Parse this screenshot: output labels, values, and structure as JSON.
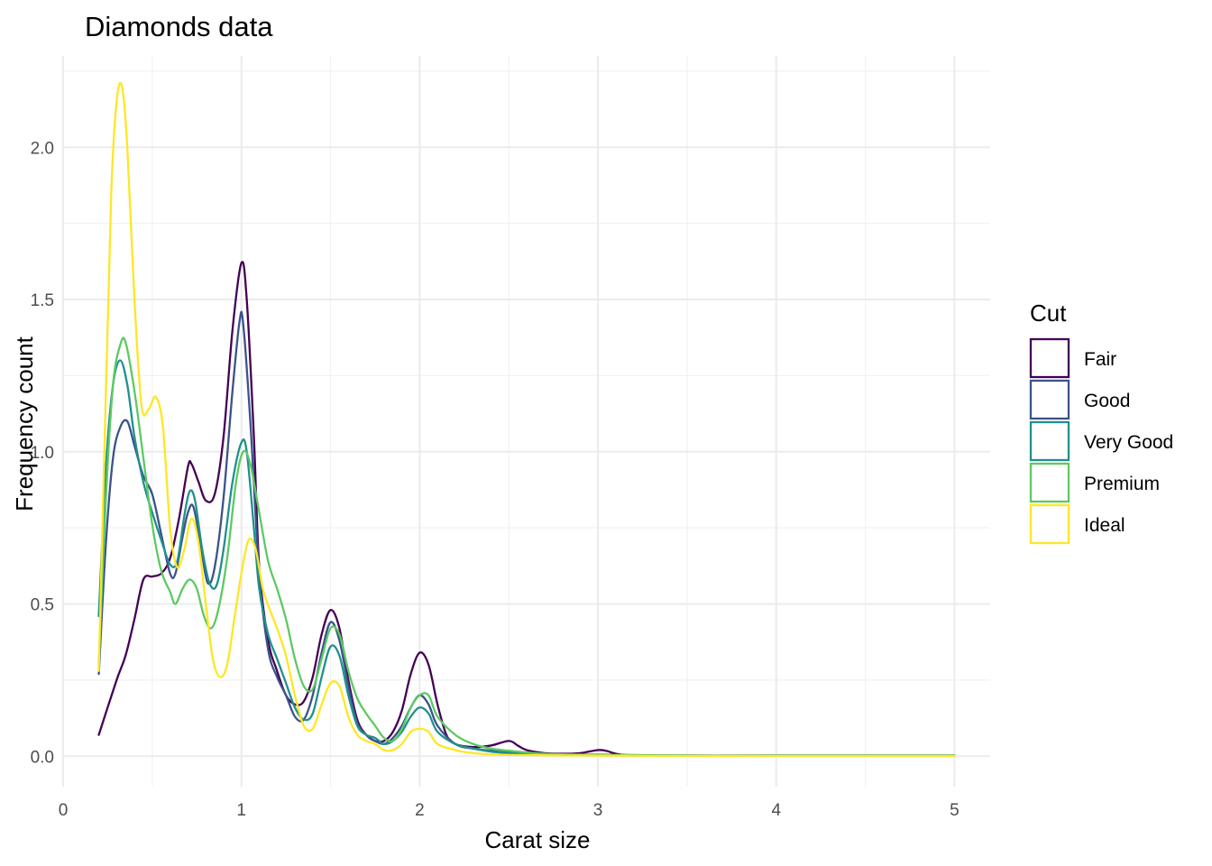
{
  "chart_data": {
    "type": "line",
    "title": "Diamonds data",
    "xlabel": "Carat size",
    "ylabel": "Frequency count",
    "xlim": [
      0,
      5.2
    ],
    "ylim": [
      -0.1,
      2.3
    ],
    "x_ticks": [
      0,
      1,
      2,
      3,
      4,
      5
    ],
    "y_ticks": [
      0.0,
      0.5,
      1.0,
      1.5,
      2.0
    ],
    "x_tick_labels": [
      "0",
      "1",
      "2",
      "3",
      "4",
      "5"
    ],
    "y_tick_labels": [
      "0.0",
      "0.5",
      "1.0",
      "1.5",
      "2.0"
    ],
    "grid": true,
    "legend": {
      "title": "Cut",
      "position": "right"
    },
    "series": [
      {
        "name": "Fair",
        "color": "#440154",
        "points": [
          [
            0.2,
            0.07
          ],
          [
            0.3,
            0.25
          ],
          [
            0.35,
            0.33
          ],
          [
            0.4,
            0.45
          ],
          [
            0.45,
            0.58
          ],
          [
            0.5,
            0.59
          ],
          [
            0.55,
            0.6
          ],
          [
            0.6,
            0.65
          ],
          [
            0.65,
            0.78
          ],
          [
            0.7,
            0.95
          ],
          [
            0.72,
            0.96
          ],
          [
            0.76,
            0.9
          ],
          [
            0.8,
            0.84
          ],
          [
            0.85,
            0.86
          ],
          [
            0.9,
            1.05
          ],
          [
            0.95,
            1.4
          ],
          [
            1.0,
            1.62
          ],
          [
            1.03,
            1.5
          ],
          [
            1.07,
            1.05
          ],
          [
            1.1,
            0.62
          ],
          [
            1.15,
            0.38
          ],
          [
            1.2,
            0.28
          ],
          [
            1.25,
            0.2
          ],
          [
            1.3,
            0.17
          ],
          [
            1.35,
            0.18
          ],
          [
            1.4,
            0.26
          ],
          [
            1.45,
            0.4
          ],
          [
            1.5,
            0.48
          ],
          [
            1.55,
            0.42
          ],
          [
            1.6,
            0.25
          ],
          [
            1.65,
            0.12
          ],
          [
            1.7,
            0.07
          ],
          [
            1.75,
            0.05
          ],
          [
            1.8,
            0.05
          ],
          [
            1.85,
            0.08
          ],
          [
            1.9,
            0.15
          ],
          [
            1.95,
            0.27
          ],
          [
            2.0,
            0.34
          ],
          [
            2.05,
            0.3
          ],
          [
            2.1,
            0.17
          ],
          [
            2.15,
            0.07
          ],
          [
            2.2,
            0.04
          ],
          [
            2.3,
            0.03
          ],
          [
            2.4,
            0.035
          ],
          [
            2.5,
            0.05
          ],
          [
            2.55,
            0.035
          ],
          [
            2.6,
            0.02
          ],
          [
            2.7,
            0.01
          ],
          [
            2.8,
            0.008
          ],
          [
            2.9,
            0.01
          ],
          [
            3.0,
            0.02
          ],
          [
            3.05,
            0.017
          ],
          [
            3.1,
            0.008
          ],
          [
            3.2,
            0.002
          ],
          [
            3.5,
            0.002
          ],
          [
            4.0,
            0.002
          ],
          [
            4.5,
            0.002
          ],
          [
            5.0,
            0.002
          ]
        ]
      },
      {
        "name": "Good",
        "color": "#3b528b",
        "points": [
          [
            0.2,
            0.27
          ],
          [
            0.24,
            0.7
          ],
          [
            0.28,
            0.98
          ],
          [
            0.32,
            1.08
          ],
          [
            0.36,
            1.1
          ],
          [
            0.4,
            1.02
          ],
          [
            0.45,
            0.92
          ],
          [
            0.5,
            0.86
          ],
          [
            0.55,
            0.73
          ],
          [
            0.6,
            0.6
          ],
          [
            0.63,
            0.6
          ],
          [
            0.67,
            0.72
          ],
          [
            0.7,
            0.8
          ],
          [
            0.73,
            0.82
          ],
          [
            0.77,
            0.7
          ],
          [
            0.81,
            0.57
          ],
          [
            0.85,
            0.62
          ],
          [
            0.9,
            0.85
          ],
          [
            0.95,
            1.2
          ],
          [
            0.99,
            1.43
          ],
          [
            1.01,
            1.42
          ],
          [
            1.05,
            1.1
          ],
          [
            1.1,
            0.6
          ],
          [
            1.15,
            0.35
          ],
          [
            1.2,
            0.26
          ],
          [
            1.25,
            0.2
          ],
          [
            1.3,
            0.13
          ],
          [
            1.35,
            0.12
          ],
          [
            1.4,
            0.2
          ],
          [
            1.45,
            0.34
          ],
          [
            1.5,
            0.44
          ],
          [
            1.55,
            0.38
          ],
          [
            1.6,
            0.23
          ],
          [
            1.65,
            0.11
          ],
          [
            1.7,
            0.07
          ],
          [
            1.75,
            0.05
          ],
          [
            1.8,
            0.04
          ],
          [
            1.85,
            0.06
          ],
          [
            1.9,
            0.1
          ],
          [
            1.95,
            0.16
          ],
          [
            2.0,
            0.2
          ],
          [
            2.05,
            0.17
          ],
          [
            2.1,
            0.1
          ],
          [
            2.2,
            0.04
          ],
          [
            2.3,
            0.025
          ],
          [
            2.4,
            0.018
          ],
          [
            2.5,
            0.012
          ],
          [
            2.7,
            0.006
          ],
          [
            3.0,
            0.005
          ],
          [
            3.5,
            0.002
          ],
          [
            4.0,
            0.002
          ],
          [
            5.0,
            0.002
          ]
        ]
      },
      {
        "name": "Very Good",
        "color": "#21908c",
        "points": [
          [
            0.2,
            0.46
          ],
          [
            0.24,
            0.95
          ],
          [
            0.28,
            1.22
          ],
          [
            0.32,
            1.3
          ],
          [
            0.36,
            1.22
          ],
          [
            0.4,
            1.05
          ],
          [
            0.45,
            0.9
          ],
          [
            0.5,
            0.8
          ],
          [
            0.55,
            0.71
          ],
          [
            0.6,
            0.63
          ],
          [
            0.64,
            0.64
          ],
          [
            0.68,
            0.79
          ],
          [
            0.71,
            0.87
          ],
          [
            0.74,
            0.84
          ],
          [
            0.78,
            0.68
          ],
          [
            0.82,
            0.57
          ],
          [
            0.86,
            0.56
          ],
          [
            0.9,
            0.68
          ],
          [
            0.95,
            0.9
          ],
          [
            1.0,
            1.03
          ],
          [
            1.03,
            1.0
          ],
          [
            1.07,
            0.75
          ],
          [
            1.1,
            0.55
          ],
          [
            1.15,
            0.4
          ],
          [
            1.2,
            0.32
          ],
          [
            1.25,
            0.24
          ],
          [
            1.3,
            0.16
          ],
          [
            1.35,
            0.12
          ],
          [
            1.4,
            0.14
          ],
          [
            1.45,
            0.26
          ],
          [
            1.5,
            0.36
          ],
          [
            1.55,
            0.33
          ],
          [
            1.6,
            0.2
          ],
          [
            1.65,
            0.1
          ],
          [
            1.7,
            0.07
          ],
          [
            1.75,
            0.06
          ],
          [
            1.8,
            0.04
          ],
          [
            1.85,
            0.05
          ],
          [
            1.9,
            0.08
          ],
          [
            1.95,
            0.13
          ],
          [
            2.0,
            0.16
          ],
          [
            2.05,
            0.14
          ],
          [
            2.1,
            0.08
          ],
          [
            2.2,
            0.04
          ],
          [
            2.3,
            0.025
          ],
          [
            2.4,
            0.015
          ],
          [
            2.5,
            0.01
          ],
          [
            2.7,
            0.005
          ],
          [
            3.0,
            0.003
          ],
          [
            3.5,
            0.002
          ],
          [
            4.0,
            0.002
          ],
          [
            5.0,
            0.002
          ]
        ]
      },
      {
        "name": "Premium",
        "color": "#5ec962",
        "points": [
          [
            0.2,
            0.3
          ],
          [
            0.24,
            0.85
          ],
          [
            0.28,
            1.22
          ],
          [
            0.32,
            1.35
          ],
          [
            0.35,
            1.36
          ],
          [
            0.4,
            1.2
          ],
          [
            0.45,
            0.98
          ],
          [
            0.5,
            0.76
          ],
          [
            0.55,
            0.61
          ],
          [
            0.6,
            0.54
          ],
          [
            0.63,
            0.5
          ],
          [
            0.67,
            0.55
          ],
          [
            0.71,
            0.58
          ],
          [
            0.75,
            0.55
          ],
          [
            0.79,
            0.46
          ],
          [
            0.83,
            0.42
          ],
          [
            0.87,
            0.48
          ],
          [
            0.92,
            0.65
          ],
          [
            0.97,
            0.9
          ],
          [
            1.01,
            1.0
          ],
          [
            1.05,
            0.96
          ],
          [
            1.1,
            0.8
          ],
          [
            1.15,
            0.64
          ],
          [
            1.2,
            0.55
          ],
          [
            1.25,
            0.45
          ],
          [
            1.3,
            0.32
          ],
          [
            1.35,
            0.23
          ],
          [
            1.4,
            0.22
          ],
          [
            1.45,
            0.32
          ],
          [
            1.5,
            0.42
          ],
          [
            1.55,
            0.4
          ],
          [
            1.6,
            0.28
          ],
          [
            1.65,
            0.19
          ],
          [
            1.7,
            0.14
          ],
          [
            1.75,
            0.1
          ],
          [
            1.8,
            0.06
          ],
          [
            1.85,
            0.05
          ],
          [
            1.9,
            0.09
          ],
          [
            1.95,
            0.16
          ],
          [
            2.0,
            0.2
          ],
          [
            2.05,
            0.2
          ],
          [
            2.1,
            0.13
          ],
          [
            2.2,
            0.07
          ],
          [
            2.3,
            0.04
          ],
          [
            2.4,
            0.025
          ],
          [
            2.5,
            0.018
          ],
          [
            2.7,
            0.008
          ],
          [
            3.0,
            0.004
          ],
          [
            3.5,
            0.002
          ],
          [
            4.0,
            0.002
          ],
          [
            5.0,
            0.002
          ]
        ]
      },
      {
        "name": "Ideal",
        "color": "#fde725",
        "points": [
          [
            0.2,
            0.28
          ],
          [
            0.24,
            1.2
          ],
          [
            0.27,
            1.85
          ],
          [
            0.3,
            2.15
          ],
          [
            0.33,
            2.2
          ],
          [
            0.36,
            2.0
          ],
          [
            0.4,
            1.5
          ],
          [
            0.44,
            1.15
          ],
          [
            0.48,
            1.14
          ],
          [
            0.52,
            1.18
          ],
          [
            0.56,
            1.08
          ],
          [
            0.6,
            0.75
          ],
          [
            0.64,
            0.62
          ],
          [
            0.68,
            0.68
          ],
          [
            0.72,
            0.78
          ],
          [
            0.76,
            0.7
          ],
          [
            0.8,
            0.5
          ],
          [
            0.84,
            0.32
          ],
          [
            0.88,
            0.26
          ],
          [
            0.92,
            0.3
          ],
          [
            0.96,
            0.45
          ],
          [
            1.0,
            0.6
          ],
          [
            1.04,
            0.71
          ],
          [
            1.08,
            0.68
          ],
          [
            1.12,
            0.55
          ],
          [
            1.16,
            0.48
          ],
          [
            1.2,
            0.42
          ],
          [
            1.25,
            0.33
          ],
          [
            1.3,
            0.2
          ],
          [
            1.35,
            0.1
          ],
          [
            1.4,
            0.09
          ],
          [
            1.45,
            0.17
          ],
          [
            1.5,
            0.24
          ],
          [
            1.55,
            0.23
          ],
          [
            1.6,
            0.13
          ],
          [
            1.65,
            0.07
          ],
          [
            1.7,
            0.05
          ],
          [
            1.75,
            0.04
          ],
          [
            1.8,
            0.02
          ],
          [
            1.85,
            0.02
          ],
          [
            1.9,
            0.04
          ],
          [
            1.95,
            0.08
          ],
          [
            2.0,
            0.09
          ],
          [
            2.05,
            0.08
          ],
          [
            2.1,
            0.04
          ],
          [
            2.2,
            0.02
          ],
          [
            2.3,
            0.01
          ],
          [
            2.5,
            0.004
          ],
          [
            3.0,
            0.002
          ],
          [
            3.5,
            0.001
          ],
          [
            4.0,
            0.001
          ],
          [
            5.0,
            0.001
          ]
        ]
      }
    ]
  }
}
